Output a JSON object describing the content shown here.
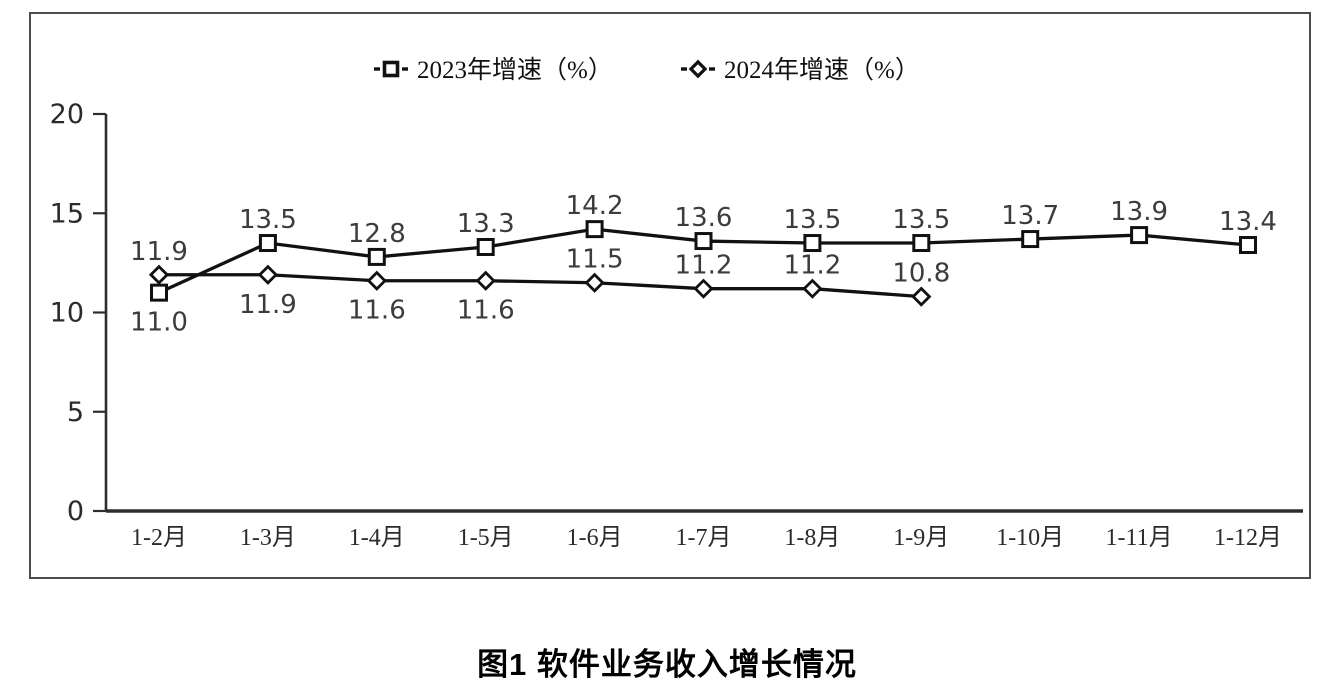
{
  "figure": {
    "title": "图1  软件业务收入增长情况"
  },
  "chart_data": {
    "type": "line",
    "title": "图1  软件业务收入增长情况",
    "categories": [
      "1-2月",
      "1-3月",
      "1-4月",
      "1-5月",
      "1-6月",
      "1-7月",
      "1-8月",
      "1-9月",
      "1-10月",
      "1-11月",
      "1-12月"
    ],
    "series": [
      {
        "name": "2023年增速（%）",
        "marker": "square",
        "values": [
          11.0,
          13.5,
          12.8,
          13.3,
          14.2,
          13.6,
          13.5,
          13.5,
          13.7,
          13.9,
          13.4
        ],
        "label_positions": [
          "below",
          "above",
          "above",
          "above",
          "above",
          "above",
          "above",
          "above",
          "above",
          "above",
          "above"
        ]
      },
      {
        "name": "2024年增速（%）",
        "marker": "diamond",
        "values": [
          11.9,
          11.9,
          11.6,
          11.6,
          11.5,
          11.2,
          11.2,
          10.8
        ],
        "label_positions": [
          "above",
          "below",
          "below",
          "below",
          "above",
          "above",
          "above",
          "above"
        ]
      }
    ],
    "xlabel": "",
    "ylabel": "",
    "ylim": [
      0,
      20
    ],
    "yticks": [
      0,
      5,
      10,
      15,
      20
    ],
    "grid": false,
    "legend_position": "top-center",
    "colors": {
      "line": "#111111",
      "marker_fill": "#ffffff",
      "data_label": "#3c3c3c",
      "axis": "#2e2e2e",
      "tick_label": "#2b2b2b",
      "box_border": "#4d4d4d",
      "background": "#ffffff"
    }
  }
}
